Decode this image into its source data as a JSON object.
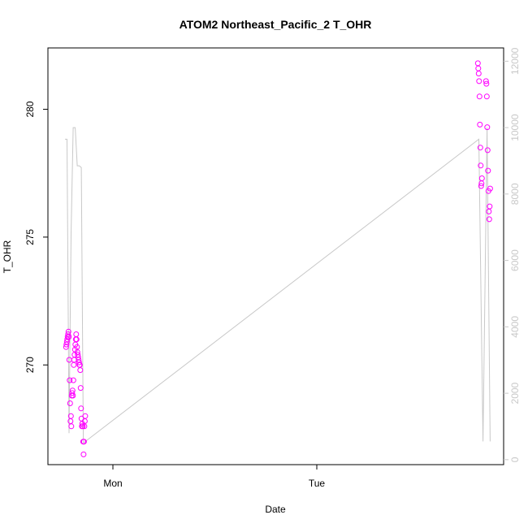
{
  "chart_data": {
    "type": "scatter",
    "title": "ATOM2 Northeast_Pacific_2 T_OHR",
    "xlabel": "Date",
    "ylabel": "T_OHR",
    "x_tick_labels": [
      "Mon",
      "Tue"
    ],
    "ylim": [
      266.1,
      282.4
    ],
    "y_ticks": [
      270,
      275,
      280
    ],
    "y2lim": [
      -150,
      12400
    ],
    "y2_ticks": [
      0,
      2000,
      4000,
      6000,
      8000,
      10000,
      12000
    ],
    "grid": false,
    "legend": "none",
    "series": [
      {
        "kind": "points",
        "color": "#ff00ff",
        "axis": "left",
        "points": [
          [
            -0.23,
            270.7
          ],
          [
            -0.228,
            270.8
          ],
          [
            -0.226,
            270.9
          ],
          [
            -0.224,
            271.0
          ],
          [
            -0.222,
            271.1
          ],
          [
            -0.22,
            271.2
          ],
          [
            -0.218,
            271.3
          ],
          [
            -0.216,
            271.1
          ],
          [
            -0.214,
            270.2
          ],
          [
            -0.212,
            269.4
          ],
          [
            -0.21,
            268.5
          ],
          [
            -0.208,
            267.8
          ],
          [
            -0.206,
            268.0
          ],
          [
            -0.204,
            267.6
          ],
          [
            -0.202,
            268.8
          ],
          [
            -0.2,
            268.9
          ],
          [
            -0.198,
            269.0
          ],
          [
            -0.196,
            268.8
          ],
          [
            -0.194,
            269.4
          ],
          [
            -0.192,
            270.0
          ],
          [
            -0.19,
            270.2
          ],
          [
            -0.188,
            270.4
          ],
          [
            -0.186,
            270.6
          ],
          [
            -0.184,
            270.8
          ],
          [
            -0.182,
            271.0
          ],
          [
            -0.18,
            271.2
          ],
          [
            -0.178,
            271.0
          ],
          [
            -0.176,
            270.7
          ],
          [
            -0.174,
            270.5
          ],
          [
            -0.172,
            270.4
          ],
          [
            -0.17,
            270.3
          ],
          [
            -0.168,
            270.2
          ],
          [
            -0.166,
            270.1
          ],
          [
            -0.164,
            270.0
          ],
          [
            -0.162,
            270.0
          ],
          [
            -0.16,
            269.8
          ],
          [
            -0.158,
            269.1
          ],
          [
            -0.156,
            268.3
          ],
          [
            -0.154,
            267.9
          ],
          [
            -0.152,
            267.6
          ],
          [
            -0.15,
            267.7
          ],
          [
            -0.148,
            267.6
          ],
          [
            -0.146,
            267.0
          ],
          [
            -0.144,
            266.5
          ],
          [
            -0.142,
            267.0
          ],
          [
            -0.14,
            267.6
          ],
          [
            -0.138,
            267.8
          ],
          [
            -0.136,
            268.0
          ],
          [
            1.79,
            281.8
          ],
          [
            1.792,
            281.6
          ],
          [
            1.794,
            281.4
          ],
          [
            1.796,
            281.1
          ],
          [
            1.798,
            280.5
          ],
          [
            1.8,
            279.4
          ],
          [
            1.802,
            278.5
          ],
          [
            1.804,
            277.8
          ],
          [
            1.806,
            277.0
          ],
          [
            1.808,
            277.1
          ],
          [
            1.81,
            277.3
          ],
          [
            1.83,
            281.1
          ],
          [
            1.832,
            281.0
          ],
          [
            1.834,
            280.5
          ],
          [
            1.836,
            279.3
          ],
          [
            1.838,
            278.4
          ],
          [
            1.84,
            277.6
          ],
          [
            1.842,
            276.8
          ],
          [
            1.844,
            276.0
          ],
          [
            1.846,
            275.7
          ],
          [
            1.848,
            276.2
          ],
          [
            1.85,
            276.9
          ]
        ]
      },
      {
        "kind": "line",
        "color": "#c8c8c8",
        "axis": "right",
        "points": [
          [
            -0.235,
            9650
          ],
          [
            -0.225,
            9650
          ],
          [
            -0.215,
            800
          ],
          [
            -0.205,
            6800
          ],
          [
            -0.195,
            10000
          ],
          [
            -0.185,
            10000
          ],
          [
            -0.175,
            8850
          ],
          [
            -0.165,
            8850
          ],
          [
            -0.155,
            8800
          ],
          [
            -0.145,
            500
          ],
          [
            1.795,
            9650
          ],
          [
            1.815,
            550
          ],
          [
            1.835,
            10000
          ],
          [
            1.85,
            550
          ]
        ]
      }
    ]
  }
}
